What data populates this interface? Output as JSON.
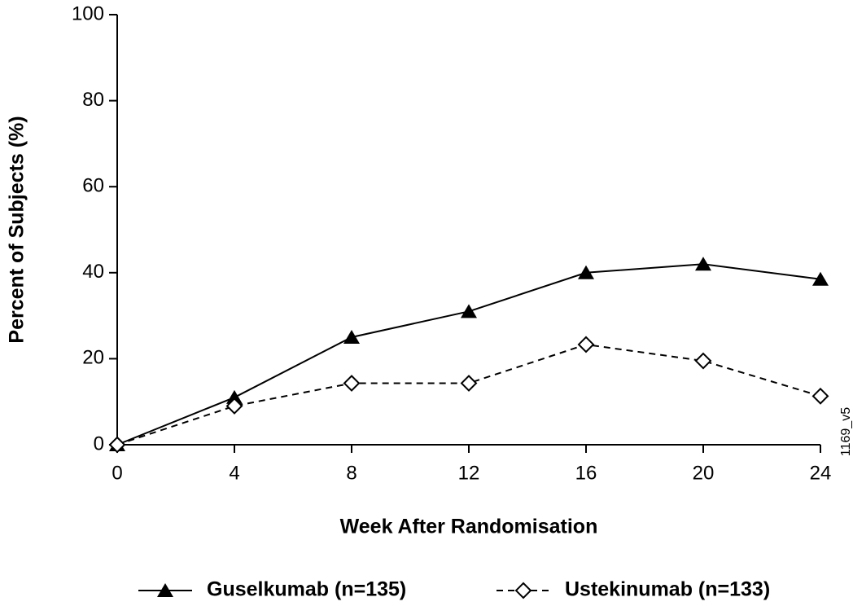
{
  "chart_data": {
    "type": "line",
    "x_label": "Week After Randomisation",
    "y_label": "Percent of Subjects (%)",
    "annotation": "1169_v5",
    "x": [
      0,
      4,
      8,
      12,
      16,
      20,
      24
    ],
    "xlim": [
      0,
      24
    ],
    "xticks": [
      0,
      4,
      8,
      12,
      16,
      20,
      24
    ],
    "ylim": [
      0,
      100
    ],
    "yticks": [
      0,
      20,
      40,
      60,
      80,
      100
    ],
    "grid": false,
    "legend": "bottom",
    "series": [
      {
        "name": "Guselkumab (n=135)",
        "color": "#000000",
        "linestyle": "solid",
        "marker": "triangle",
        "values": [
          0,
          11,
          25,
          31,
          40,
          42,
          38.5
        ]
      },
      {
        "name": "Ustekinumab (n=133)",
        "color": "#000000",
        "linestyle": "dashed",
        "marker": "diamond",
        "values": [
          0,
          9,
          14.3,
          14.3,
          23.3,
          19.5,
          11.3
        ]
      }
    ]
  }
}
